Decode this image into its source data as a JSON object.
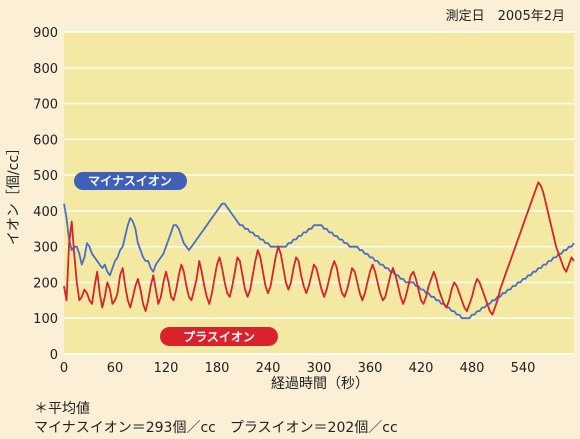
{
  "chart_data": {
    "type": "line",
    "date_text": "測定日　2005年2月",
    "xlabel": "経過時間（秒）",
    "ylabel": "イオン［個/cc］",
    "xlim": [
      0,
      600
    ],
    "ylim": [
      0,
      900
    ],
    "x_ticks": [
      0,
      60,
      120,
      180,
      240,
      300,
      360,
      420,
      480,
      540
    ],
    "y_ticks": [
      0,
      100,
      200,
      300,
      400,
      500,
      600,
      700,
      800,
      900
    ],
    "grid": true,
    "x_step": 3,
    "series": [
      {
        "name": "マイナスイオン",
        "color": "#4a6fc4",
        "values": [
          420,
          380,
          320,
          290,
          300,
          300,
          280,
          250,
          270,
          310,
          300,
          280,
          270,
          260,
          250,
          240,
          250,
          230,
          220,
          240,
          260,
          270,
          290,
          300,
          330,
          360,
          380,
          370,
          350,
          310,
          290,
          270,
          260,
          260,
          240,
          230,
          250,
          260,
          270,
          280,
          300,
          320,
          340,
          360,
          360,
          350,
          330,
          310,
          300,
          290,
          300,
          310,
          320,
          330,
          340,
          350,
          360,
          370,
          380,
          390,
          400,
          410,
          420,
          420,
          410,
          400,
          390,
          380,
          370,
          360,
          360,
          350,
          350,
          340,
          340,
          330,
          330,
          320,
          320,
          310,
          310,
          300,
          300,
          300,
          300,
          300,
          300,
          300,
          310,
          310,
          320,
          320,
          330,
          330,
          340,
          340,
          350,
          350,
          360,
          360,
          360,
          360,
          350,
          350,
          340,
          340,
          330,
          330,
          320,
          320,
          310,
          310,
          300,
          300,
          300,
          300,
          290,
          290,
          280,
          280,
          270,
          270,
          260,
          260,
          250,
          250,
          240,
          240,
          230,
          230,
          220,
          220,
          210,
          210,
          200,
          200,
          200,
          200,
          190,
          190,
          180,
          180,
          170,
          170,
          160,
          160,
          150,
          150,
          140,
          140,
          130,
          130,
          120,
          120,
          110,
          110,
          100,
          100,
          100,
          100,
          110,
          110,
          120,
          120,
          130,
          130,
          140,
          140,
          150,
          150,
          160,
          160,
          170,
          170,
          180,
          180,
          190,
          190,
          200,
          200,
          210,
          210,
          220,
          220,
          230,
          230,
          240,
          240,
          250,
          250,
          260,
          260,
          270,
          270,
          280,
          280,
          290,
          290,
          300,
          300,
          310
        ]
      },
      {
        "name": "プラスイオン",
        "color": "#d8222c",
        "values": [
          190,
          150,
          310,
          370,
          280,
          200,
          150,
          160,
          180,
          170,
          150,
          140,
          190,
          230,
          170,
          130,
          160,
          200,
          180,
          140,
          150,
          170,
          220,
          240,
          190,
          150,
          130,
          160,
          190,
          210,
          180,
          140,
          120,
          150,
          190,
          220,
          180,
          140,
          160,
          200,
          230,
          200,
          160,
          150,
          180,
          220,
          250,
          230,
          190,
          160,
          150,
          180,
          210,
          260,
          230,
          190,
          160,
          140,
          170,
          210,
          250,
          270,
          240,
          200,
          170,
          160,
          190,
          230,
          270,
          260,
          220,
          180,
          160,
          180,
          220,
          260,
          290,
          270,
          230,
          190,
          170,
          190,
          230,
          270,
          300,
          280,
          240,
          200,
          180,
          200,
          240,
          270,
          260,
          220,
          190,
          170,
          190,
          220,
          250,
          240,
          210,
          180,
          160,
          180,
          210,
          240,
          260,
          240,
          200,
          170,
          160,
          180,
          210,
          240,
          230,
          200,
          170,
          150,
          170,
          200,
          230,
          250,
          230,
          200,
          170,
          150,
          160,
          190,
          220,
          240,
          220,
          190,
          160,
          140,
          160,
          190,
          220,
          230,
          210,
          180,
          150,
          140,
          160,
          190,
          210,
          230,
          210,
          180,
          160,
          140,
          130,
          150,
          180,
          200,
          190,
          170,
          150,
          130,
          120,
          140,
          160,
          190,
          210,
          200,
          180,
          160,
          140,
          120,
          110,
          130,
          150,
          180,
          200,
          220,
          240,
          260,
          280,
          300,
          320,
          340,
          360,
          380,
          400,
          420,
          440,
          460,
          480,
          470,
          450,
          420,
          390,
          360,
          330,
          300,
          280,
          260,
          240,
          230,
          250,
          270,
          260
        ]
      }
    ],
    "series_labels": {
      "minus": "マイナスイオン",
      "plus": "プラスイオン"
    }
  },
  "footnote": {
    "title": "＊平均値",
    "line": "マイナスイオン＝293個／cc　プラスイオン＝202個／cc"
  }
}
